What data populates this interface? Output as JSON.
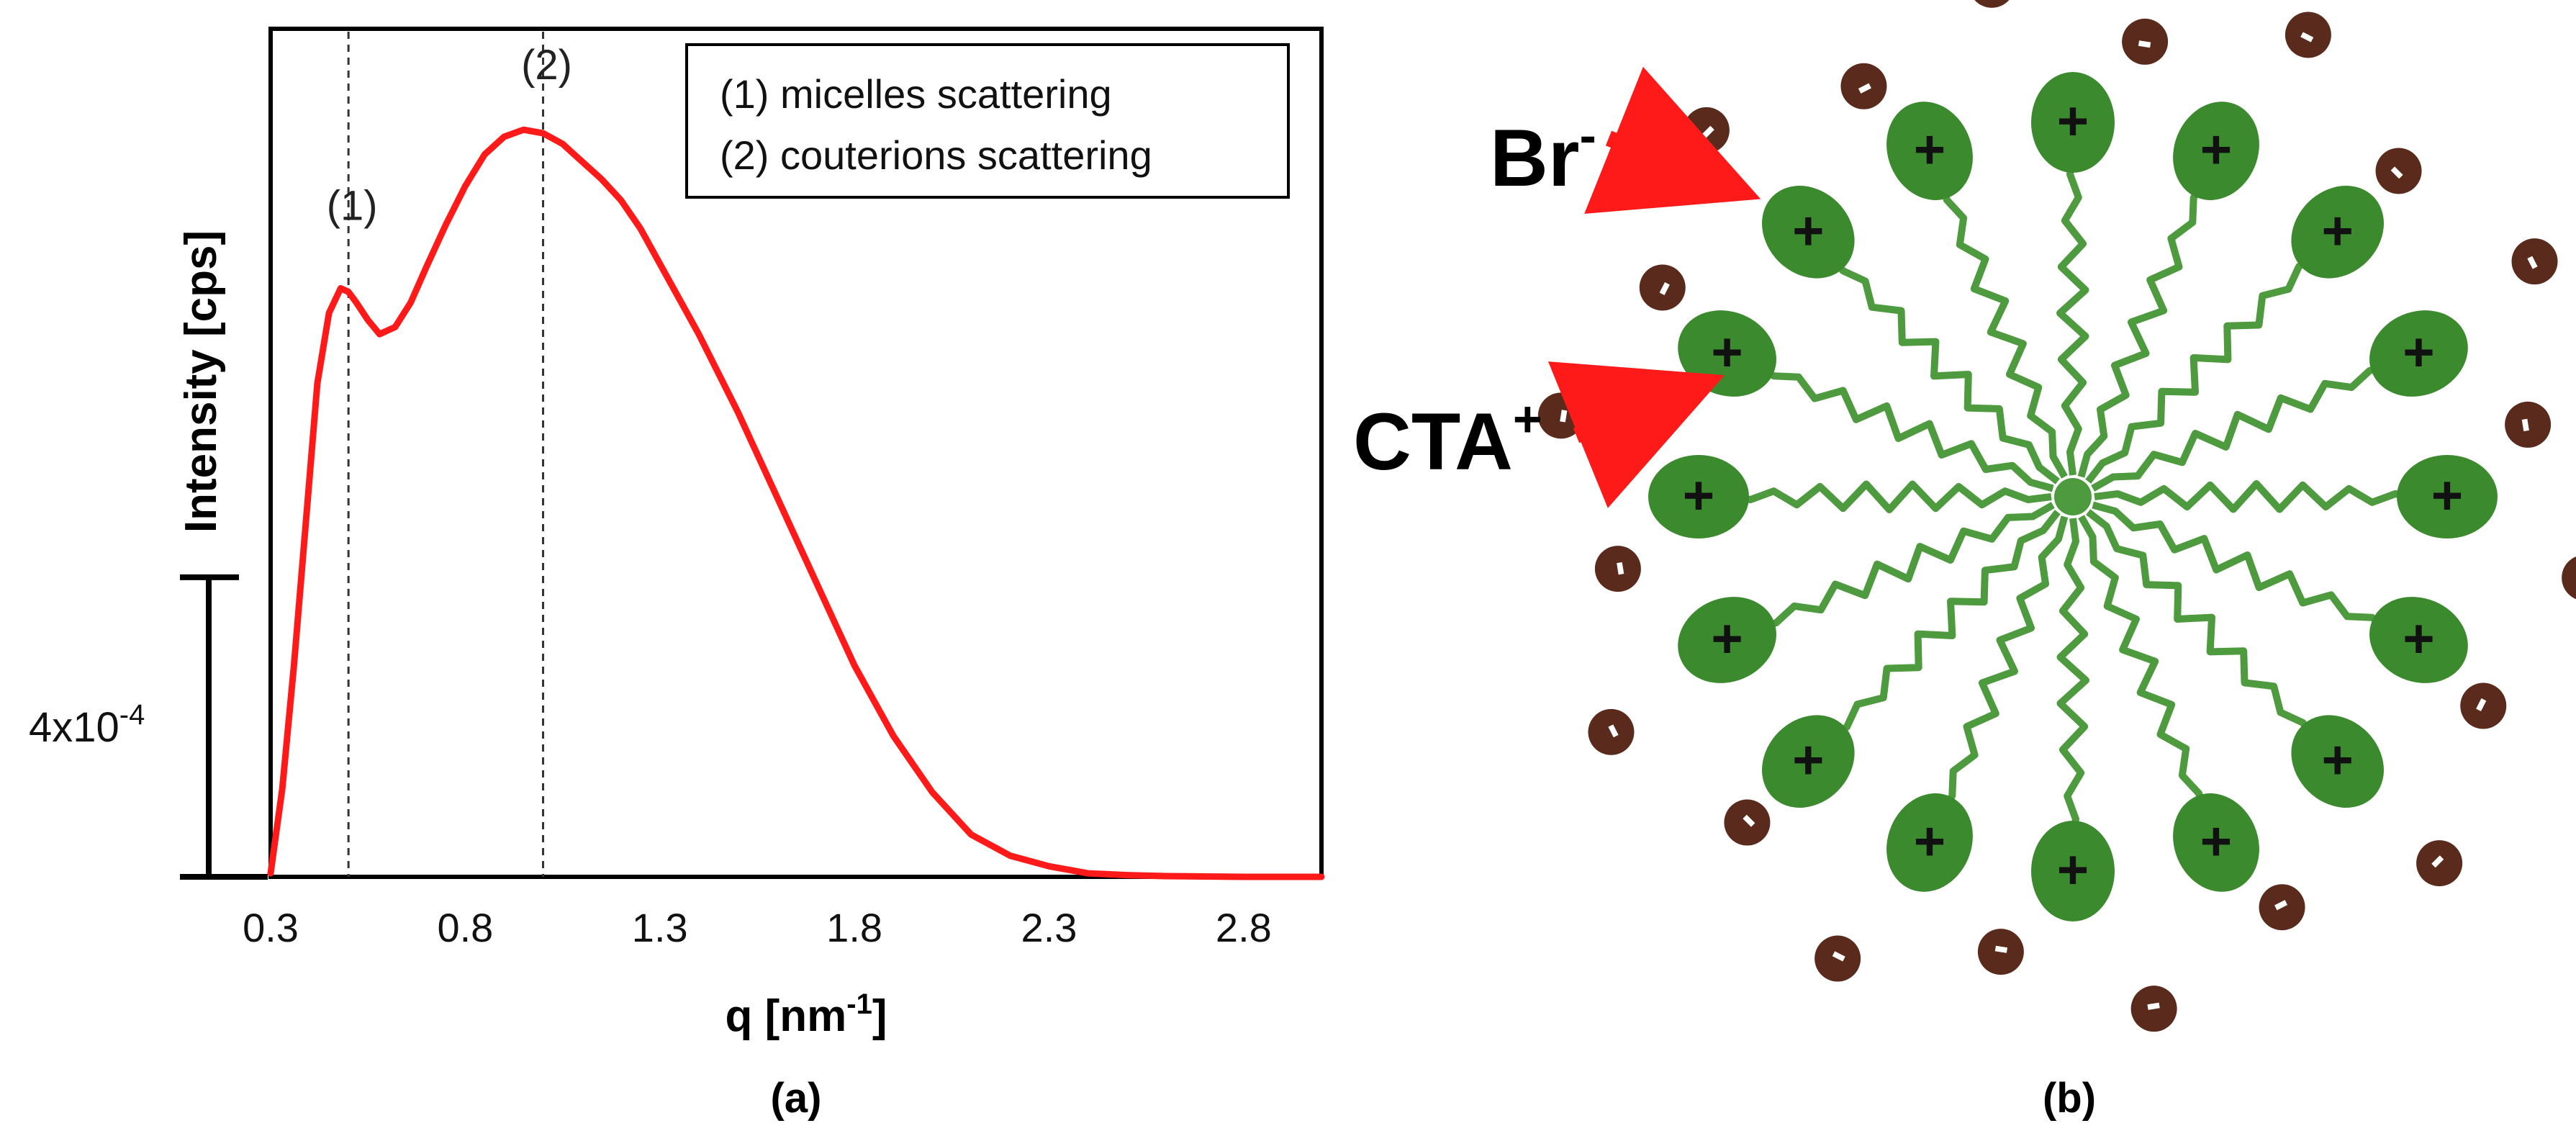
{
  "colors": {
    "curve": "#ff1a1a",
    "axis": "#000000",
    "dashed": "#333333",
    "head_fill": "#3b8a2e",
    "tail": "#4e9a3e",
    "ion_fill": "#5a2b1c",
    "ion_mark": "#ffffff",
    "arrow": "#ff1a1a"
  },
  "panel_a": {
    "caption": "(a)",
    "scale_bar_label": "4x10",
    "scale_bar_exponent": "-4",
    "ylabel": "Intensity [cps]",
    "xlabel": "q [nm",
    "xlabel_exponent": "-1",
    "xlabel_suffix": "]",
    "legend": [
      "(1) micelles scattering",
      "(2) couterions scattering"
    ]
  },
  "chart_data": {
    "type": "line",
    "title": "",
    "xlabel": "q [nm-1]",
    "ylabel": "Intensity [cps]",
    "xlim": [
      0.3,
      3.0
    ],
    "ylim": [
      0,
      2.1
    ],
    "x_ticks": [
      0.3,
      0.8,
      1.3,
      1.8,
      2.3,
      2.8
    ],
    "x_tick_labels": [
      "0.3",
      "0.8",
      "1.3",
      "1.8",
      "2.3",
      "2.8"
    ],
    "grid": false,
    "legend_position": "top-right",
    "scale_bar": {
      "label": "4x10-4",
      "y_from": 0,
      "y_to": 0.85
    },
    "series": [
      {
        "name": "scattering intensity",
        "x": [
          0.3,
          0.33,
          0.36,
          0.39,
          0.42,
          0.45,
          0.48,
          0.5,
          0.52,
          0.55,
          0.58,
          0.62,
          0.66,
          0.7,
          0.75,
          0.8,
          0.85,
          0.9,
          0.95,
          1.0,
          1.05,
          1.1,
          1.15,
          1.2,
          1.25,
          1.3,
          1.4,
          1.5,
          1.6,
          1.7,
          1.8,
          1.9,
          2.0,
          2.1,
          2.2,
          2.3,
          2.4,
          2.5,
          2.6,
          2.7,
          2.8,
          2.9,
          3.0
        ],
        "y": [
          0.01,
          0.25,
          0.6,
          1.0,
          1.4,
          1.6,
          1.67,
          1.66,
          1.63,
          1.58,
          1.54,
          1.56,
          1.63,
          1.73,
          1.85,
          1.96,
          2.05,
          2.1,
          2.12,
          2.11,
          2.08,
          2.03,
          1.98,
          1.92,
          1.84,
          1.74,
          1.54,
          1.32,
          1.08,
          0.84,
          0.6,
          0.4,
          0.24,
          0.12,
          0.06,
          0.03,
          0.01,
          0.005,
          0.002,
          0.001,
          0.0,
          0.0,
          0.0
        ]
      }
    ],
    "annotations": [
      {
        "label": "(1)",
        "x": 0.5,
        "y": 1.67,
        "marker": "dashed vertical line"
      },
      {
        "label": "(2)",
        "x": 1.0,
        "y": 2.12,
        "marker": "dashed vertical line"
      }
    ]
  },
  "panel_b": {
    "caption": "(b)",
    "br_label": "Br",
    "br_superscript": "-",
    "cta_label": "CTA",
    "cta_superscript": "+",
    "head_count": 16,
    "head_charge": "+",
    "counterion_count": 20,
    "counterion_charge": "-"
  }
}
